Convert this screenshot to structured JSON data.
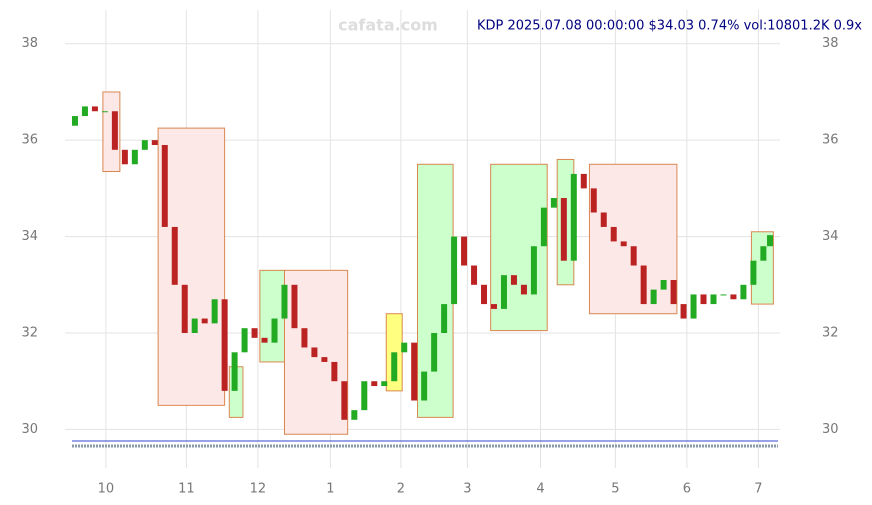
{
  "chart_data": {
    "type": "candlestick",
    "title": "KDP 2025.07.08 00:00:00 $34.03 0.74% vol:10801.2K 0.9x",
    "watermark": "cafata.com",
    "xlim": [
      -3,
      212
    ],
    "xticks": [
      {
        "value": 9.3,
        "label": "10"
      },
      {
        "value": 33.5,
        "label": "11"
      },
      {
        "value": 55,
        "label": "12"
      },
      {
        "value": 76.8,
        "label": "1"
      },
      {
        "value": 98,
        "label": "2"
      },
      {
        "value": 118,
        "label": "3"
      },
      {
        "value": 140,
        "label": "4"
      },
      {
        "value": 162.5,
        "label": "5"
      },
      {
        "value": 184,
        "label": "6"
      },
      {
        "value": 205.5,
        "label": "7"
      }
    ],
    "ylim": [
      29.2,
      38.7
    ],
    "yticks": [
      30,
      32,
      34,
      36,
      38
    ],
    "grid": true,
    "up_color": "#22aa22",
    "down_color": "#bb2222",
    "candles": {
      "x": [
        0,
        3,
        6,
        9,
        12,
        15,
        18,
        21,
        24,
        27,
        30,
        33,
        36,
        39,
        42,
        45,
        48,
        51,
        54,
        57,
        60,
        63,
        66,
        69,
        72,
        75,
        78,
        81,
        84,
        87,
        90,
        93,
        96,
        99,
        102,
        105,
        108,
        111,
        114,
        117,
        120,
        123,
        126,
        129,
        132,
        135,
        138,
        141,
        144,
        147,
        150,
        153,
        156,
        159,
        162,
        165,
        168,
        171,
        174,
        177,
        180,
        183,
        186,
        189,
        192,
        195,
        198,
        201,
        204,
        207,
        209
      ],
      "open": [
        36.3,
        36.5,
        36.7,
        36.6,
        36.6,
        35.8,
        35.5,
        35.8,
        36.0,
        35.9,
        34.2,
        33.0,
        32.0,
        32.3,
        32.2,
        32.7,
        30.8,
        31.6,
        32.1,
        31.9,
        31.8,
        32.3,
        33.0,
        32.1,
        31.7,
        31.5,
        31.4,
        31.0,
        30.2,
        30.4,
        31.0,
        30.9,
        31.0,
        31.6,
        31.8,
        30.6,
        31.2,
        32.0,
        32.6,
        34.0,
        33.4,
        33.0,
        32.6,
        32.5,
        33.2,
        33.0,
        32.8,
        33.8,
        34.6,
        34.8,
        33.5,
        35.3,
        35.0,
        34.5,
        34.2,
        33.9,
        33.8,
        33.4,
        32.6,
        32.9,
        33.1,
        32.6,
        32.3,
        32.8,
        32.6,
        32.8,
        32.8,
        32.7,
        33.0,
        33.5,
        33.8
      ],
      "close": [
        36.5,
        36.7,
        36.6,
        36.6,
        35.8,
        35.5,
        35.8,
        36.0,
        35.9,
        34.2,
        33.0,
        32.0,
        32.3,
        32.2,
        32.7,
        30.8,
        31.6,
        32.1,
        31.9,
        31.8,
        32.3,
        33.0,
        32.1,
        31.7,
        31.5,
        31.4,
        31.0,
        30.2,
        30.4,
        31.0,
        30.9,
        31.0,
        31.6,
        31.8,
        30.6,
        31.2,
        32.0,
        32.6,
        34.0,
        33.4,
        33.0,
        32.6,
        32.5,
        33.2,
        33.0,
        32.8,
        33.8,
        34.6,
        34.8,
        33.5,
        35.3,
        35.0,
        34.5,
        34.2,
        33.9,
        33.8,
        33.4,
        32.6,
        32.9,
        33.1,
        32.6,
        32.3,
        32.8,
        32.6,
        32.8,
        32.8,
        32.7,
        33.0,
        33.5,
        33.8,
        34.03
      ]
    },
    "boxes": [
      {
        "start": 8.4,
        "end": 13.5,
        "low": 35.35,
        "high": 37.0,
        "color": "#fde8e8"
      },
      {
        "start": 25,
        "end": 45,
        "low": 30.5,
        "high": 36.25,
        "color": "#fde8e8"
      },
      {
        "start": 46.4,
        "end": 50.5,
        "low": 30.25,
        "high": 31.3,
        "color": "#ccffcc"
      },
      {
        "start": 55.6,
        "end": 63,
        "low": 31.4,
        "high": 33.3,
        "color": "#ccffcc"
      },
      {
        "start": 63,
        "end": 82,
        "low": 29.9,
        "high": 33.3,
        "color": "#fde8e8"
      },
      {
        "start": 93.6,
        "end": 98.4,
        "low": 30.8,
        "high": 32.4,
        "color": "#ffff80"
      },
      {
        "start": 103,
        "end": 113.7,
        "low": 30.25,
        "high": 35.5,
        "color": "#ccffcc"
      },
      {
        "start": 125,
        "end": 142,
        "low": 32.05,
        "high": 35.5,
        "color": "#ccffcc"
      },
      {
        "start": 145,
        "end": 150,
        "low": 33.0,
        "high": 35.6,
        "color": "#ccffcc"
      },
      {
        "start": 154.7,
        "end": 181,
        "low": 32.4,
        "high": 35.5,
        "color": "#fde8e8"
      },
      {
        "start": 203.4,
        "end": 210,
        "low": 32.6,
        "high": 34.1,
        "color": "#ccffcc"
      }
    ]
  }
}
